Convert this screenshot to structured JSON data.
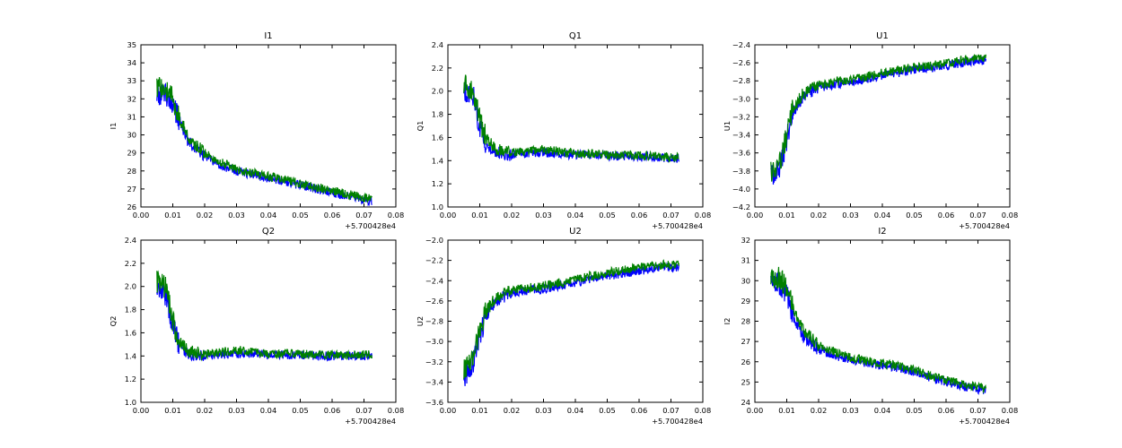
{
  "figure": {
    "background": "#ffffff",
    "series_colors": {
      "blue": "#0000ff",
      "green": "#008000"
    }
  },
  "chart_data": [
    {
      "type": "line",
      "title": "I1",
      "xlabel": "",
      "ylabel": "I1",
      "xlim": [
        0.0,
        0.08
      ],
      "ylim": [
        26,
        35
      ],
      "x_offset_label": "+5.700428e4",
      "xticks": [
        "0.00",
        "0.01",
        "0.02",
        "0.03",
        "0.04",
        "0.05",
        "0.06",
        "0.07",
        "0.08"
      ],
      "yticks": [
        "26",
        "27",
        "28",
        "29",
        "30",
        "31",
        "32",
        "33",
        "34",
        "35"
      ],
      "grid": false,
      "x_start": 0.005,
      "x_end": 0.0725,
      "series": [
        {
          "color": "#0000ff",
          "x": [
            0.005,
            0.008,
            0.01,
            0.012,
            0.015,
            0.02,
            0.025,
            0.03,
            0.035,
            0.04,
            0.045,
            0.05,
            0.055,
            0.06,
            0.065,
            0.07,
            0.0725
          ],
          "y": [
            32.3,
            32.2,
            31.8,
            30.8,
            29.6,
            28.8,
            28.3,
            28.0,
            27.8,
            27.6,
            27.45,
            27.2,
            27.0,
            26.8,
            26.6,
            26.4,
            26.35
          ]
        },
        {
          "color": "#008000",
          "x": [
            0.005,
            0.008,
            0.01,
            0.012,
            0.015,
            0.02,
            0.025,
            0.03,
            0.035,
            0.04,
            0.045,
            0.05,
            0.055,
            0.06,
            0.065,
            0.07,
            0.0725
          ],
          "y": [
            32.7,
            32.5,
            32.0,
            31.0,
            29.8,
            29.0,
            28.5,
            28.1,
            27.9,
            27.7,
            27.55,
            27.3,
            27.1,
            26.9,
            26.7,
            26.5,
            26.45
          ]
        }
      ]
    },
    {
      "type": "line",
      "title": "Q1",
      "xlabel": "",
      "ylabel": "Q1",
      "xlim": [
        0.0,
        0.08
      ],
      "ylim": [
        1.0,
        2.4
      ],
      "x_offset_label": "+5.700428e4",
      "xticks": [
        "0.00",
        "0.01",
        "0.02",
        "0.03",
        "0.04",
        "0.05",
        "0.06",
        "0.07",
        "0.08"
      ],
      "yticks": [
        "1.0",
        "1.2",
        "1.4",
        "1.6",
        "1.8",
        "2.0",
        "2.2",
        "2.4"
      ],
      "grid": false,
      "x_start": 0.005,
      "x_end": 0.0725,
      "series": [
        {
          "color": "#0000ff",
          "x": [
            0.005,
            0.008,
            0.01,
            0.012,
            0.015,
            0.02,
            0.025,
            0.03,
            0.035,
            0.04,
            0.045,
            0.05,
            0.055,
            0.06,
            0.065,
            0.07,
            0.0725
          ],
          "y": [
            2.0,
            1.95,
            1.7,
            1.55,
            1.47,
            1.45,
            1.46,
            1.47,
            1.46,
            1.45,
            1.45,
            1.44,
            1.44,
            1.43,
            1.43,
            1.42,
            1.42
          ]
        },
        {
          "color": "#008000",
          "x": [
            0.005,
            0.008,
            0.01,
            0.012,
            0.015,
            0.02,
            0.025,
            0.03,
            0.035,
            0.04,
            0.045,
            0.05,
            0.055,
            0.06,
            0.065,
            0.07,
            0.0725
          ],
          "y": [
            2.05,
            2.0,
            1.75,
            1.6,
            1.5,
            1.47,
            1.48,
            1.5,
            1.48,
            1.46,
            1.46,
            1.45,
            1.45,
            1.44,
            1.44,
            1.43,
            1.43
          ]
        }
      ]
    },
    {
      "type": "line",
      "title": "U1",
      "xlabel": "",
      "ylabel": "U1",
      "xlim": [
        0.0,
        0.08
      ],
      "ylim": [
        -4.2,
        -2.4
      ],
      "x_offset_label": "+5.700428e4",
      "xticks": [
        "0.00",
        "0.01",
        "0.02",
        "0.03",
        "0.04",
        "0.05",
        "0.06",
        "0.07",
        "0.08"
      ],
      "yticks": [
        "−4.2",
        "−4.0",
        "−3.8",
        "−3.6",
        "−3.4",
        "−3.2",
        "−3.0",
        "−2.8",
        "−2.6",
        "−2.4"
      ],
      "grid": false,
      "x_start": 0.005,
      "x_end": 0.0725,
      "series": [
        {
          "color": "#0000ff",
          "x": [
            0.005,
            0.008,
            0.01,
            0.012,
            0.015,
            0.02,
            0.025,
            0.03,
            0.035,
            0.04,
            0.045,
            0.05,
            0.055,
            0.06,
            0.065,
            0.07,
            0.0725
          ],
          "y": [
            -3.85,
            -3.75,
            -3.45,
            -3.15,
            -2.98,
            -2.88,
            -2.84,
            -2.82,
            -2.78,
            -2.74,
            -2.71,
            -2.68,
            -2.66,
            -2.63,
            -2.6,
            -2.58,
            -2.57
          ]
        },
        {
          "color": "#008000",
          "x": [
            0.005,
            0.008,
            0.01,
            0.012,
            0.015,
            0.02,
            0.025,
            0.03,
            0.035,
            0.04,
            0.045,
            0.05,
            0.055,
            0.06,
            0.065,
            0.07,
            0.0725
          ],
          "y": [
            -3.8,
            -3.7,
            -3.4,
            -3.1,
            -2.95,
            -2.85,
            -2.81,
            -2.79,
            -2.75,
            -2.71,
            -2.68,
            -2.65,
            -2.63,
            -2.6,
            -2.57,
            -2.55,
            -2.54
          ]
        }
      ]
    },
    {
      "type": "line",
      "title": "Q2",
      "xlabel": "",
      "ylabel": "Q2",
      "xlim": [
        0.0,
        0.08
      ],
      "ylim": [
        1.0,
        2.4
      ],
      "x_offset_label": "+5.700428e4",
      "xticks": [
        "0.00",
        "0.01",
        "0.02",
        "0.03",
        "0.04",
        "0.05",
        "0.06",
        "0.07",
        "0.08"
      ],
      "yticks": [
        "1.0",
        "1.2",
        "1.4",
        "1.6",
        "1.8",
        "2.0",
        "2.2",
        "2.4"
      ],
      "grid": false,
      "x_start": 0.005,
      "x_end": 0.0725,
      "series": [
        {
          "color": "#0000ff",
          "x": [
            0.005,
            0.008,
            0.01,
            0.012,
            0.015,
            0.02,
            0.025,
            0.03,
            0.035,
            0.04,
            0.045,
            0.05,
            0.055,
            0.06,
            0.065,
            0.07,
            0.0725
          ],
          "y": [
            2.0,
            1.92,
            1.65,
            1.5,
            1.42,
            1.4,
            1.41,
            1.42,
            1.42,
            1.41,
            1.41,
            1.41,
            1.4,
            1.4,
            1.4,
            1.4,
            1.4
          ]
        },
        {
          "color": "#008000",
          "x": [
            0.005,
            0.008,
            0.01,
            0.012,
            0.015,
            0.02,
            0.025,
            0.03,
            0.035,
            0.04,
            0.045,
            0.05,
            0.055,
            0.06,
            0.065,
            0.07,
            0.0725
          ],
          "y": [
            2.05,
            1.98,
            1.7,
            1.52,
            1.44,
            1.42,
            1.43,
            1.45,
            1.44,
            1.42,
            1.42,
            1.42,
            1.41,
            1.41,
            1.41,
            1.41,
            1.41
          ]
        }
      ]
    },
    {
      "type": "line",
      "title": "U2",
      "xlabel": "",
      "ylabel": "U2",
      "xlim": [
        0.0,
        0.08
      ],
      "ylim": [
        -3.6,
        -2.0
      ],
      "x_offset_label": "+5.700428e4",
      "xticks": [
        "0.00",
        "0.01",
        "0.02",
        "0.03",
        "0.04",
        "0.05",
        "0.06",
        "0.07",
        "0.08"
      ],
      "yticks": [
        "−3.6",
        "−3.4",
        "−3.2",
        "−3.0",
        "−2.8",
        "−2.6",
        "−2.4",
        "−2.2",
        "−2.0"
      ],
      "grid": false,
      "x_start": 0.005,
      "x_end": 0.0725,
      "series": [
        {
          "color": "#0000ff",
          "x": [
            0.005,
            0.008,
            0.01,
            0.012,
            0.015,
            0.02,
            0.025,
            0.03,
            0.035,
            0.04,
            0.045,
            0.05,
            0.055,
            0.06,
            0.065,
            0.07,
            0.0725
          ],
          "y": [
            -3.35,
            -3.2,
            -2.95,
            -2.75,
            -2.6,
            -2.52,
            -2.5,
            -2.48,
            -2.45,
            -2.42,
            -2.38,
            -2.35,
            -2.33,
            -2.3,
            -2.28,
            -2.27,
            -2.26
          ]
        },
        {
          "color": "#008000",
          "x": [
            0.005,
            0.008,
            0.01,
            0.012,
            0.015,
            0.02,
            0.025,
            0.03,
            0.035,
            0.04,
            0.045,
            0.05,
            0.055,
            0.06,
            0.065,
            0.07,
            0.0725
          ],
          "y": [
            -3.3,
            -3.15,
            -2.9,
            -2.7,
            -2.57,
            -2.49,
            -2.47,
            -2.45,
            -2.42,
            -2.39,
            -2.35,
            -2.32,
            -2.3,
            -2.27,
            -2.25,
            -2.24,
            -2.23
          ]
        }
      ]
    },
    {
      "type": "line",
      "title": "I2",
      "xlabel": "",
      "ylabel": "I2",
      "xlim": [
        0.0,
        0.08
      ],
      "ylim": [
        24,
        32
      ],
      "x_offset_label": "+5.700428e4",
      "xticks": [
        "0.00",
        "0.01",
        "0.02",
        "0.03",
        "0.04",
        "0.05",
        "0.06",
        "0.07",
        "0.08"
      ],
      "yticks": [
        "24",
        "25",
        "26",
        "27",
        "28",
        "29",
        "30",
        "31",
        "32"
      ],
      "grid": false,
      "x_start": 0.005,
      "x_end": 0.0725,
      "series": [
        {
          "color": "#0000ff",
          "x": [
            0.005,
            0.008,
            0.01,
            0.012,
            0.015,
            0.02,
            0.025,
            0.03,
            0.035,
            0.04,
            0.045,
            0.05,
            0.055,
            0.06,
            0.065,
            0.07,
            0.0725
          ],
          "y": [
            30.0,
            29.8,
            29.3,
            28.3,
            27.3,
            26.6,
            26.3,
            26.1,
            25.95,
            25.8,
            25.7,
            25.5,
            25.2,
            25.0,
            24.8,
            24.65,
            24.6
          ]
        },
        {
          "color": "#008000",
          "x": [
            0.005,
            0.008,
            0.01,
            0.012,
            0.015,
            0.02,
            0.025,
            0.03,
            0.035,
            0.04,
            0.045,
            0.05,
            0.055,
            0.06,
            0.065,
            0.07,
            0.0725
          ],
          "y": [
            30.3,
            30.1,
            29.6,
            28.6,
            27.6,
            26.8,
            26.5,
            26.2,
            26.05,
            25.9,
            25.8,
            25.6,
            25.3,
            25.1,
            24.9,
            24.75,
            24.7
          ]
        }
      ]
    }
  ]
}
